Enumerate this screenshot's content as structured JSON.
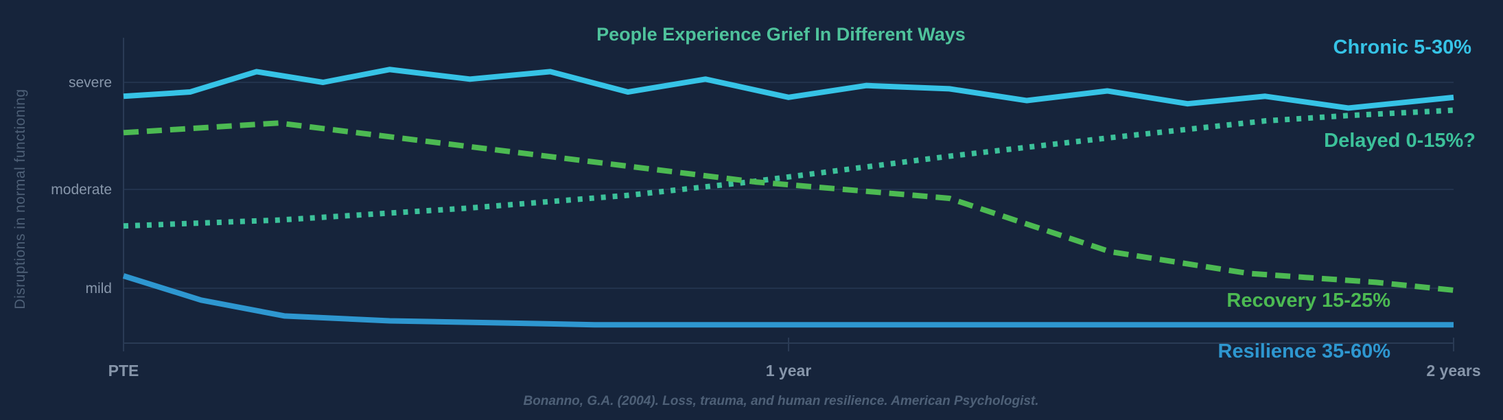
{
  "chart_data": {
    "type": "line",
    "title": "People Experience Grief In Different Ways",
    "ylabel": "Disruptions in normal functioning",
    "xlabel": "",
    "x_ticks": [
      {
        "value": 0,
        "label": "PTE"
      },
      {
        "value": 12,
        "label": "1 year"
      },
      {
        "value": 24,
        "label": "2 years"
      }
    ],
    "y_ticks": [
      {
        "value": 1,
        "label": "mild"
      },
      {
        "value": 2,
        "label": "moderate"
      },
      {
        "value": 3,
        "label": "severe"
      }
    ],
    "xlim": [
      0,
      24
    ],
    "grid": "horizontal",
    "footnote": "Bonanno, G.A. (2004). Loss, trauma, and human resilience. American Psychologist.",
    "series": [
      {
        "name": "Chronic 5-30%",
        "style": "solid",
        "color": "#36c3e6",
        "x": [
          0,
          1.2,
          2.4,
          3.6,
          4.8,
          6.25,
          7.7,
          9.1,
          10.5,
          12,
          13.4,
          14.9,
          16.3,
          17.75,
          19.2,
          20.6,
          22.1,
          24
        ],
        "y": [
          2.87,
          2.91,
          3.1,
          3.0,
          3.12,
          3.03,
          3.1,
          2.91,
          3.03,
          2.86,
          2.97,
          2.94,
          2.83,
          2.92,
          2.8,
          2.87,
          2.76,
          2.86
        ]
      },
      {
        "name": "Delayed 0-15%?",
        "style": "dotted",
        "color": "#3cc19a",
        "x": [
          0,
          2.8,
          6.2,
          9.1,
          11.3,
          14.9,
          17.75,
          20.6,
          22.1,
          24
        ],
        "y": [
          1.63,
          1.69,
          1.81,
          1.94,
          2.07,
          2.31,
          2.48,
          2.64,
          2.69,
          2.74
        ]
      },
      {
        "name": "Recovery 15-25%",
        "style": "dashed",
        "color": "#4cba52",
        "x": [
          0,
          2.8,
          11.4,
          14.9,
          17.8,
          20.3,
          22.6,
          24
        ],
        "y": [
          2.53,
          2.62,
          2.07,
          1.91,
          1.37,
          1.15,
          1.06,
          0.98
        ]
      },
      {
        "name": "Resilience 35-60%",
        "style": "solid",
        "color": "#2e97d0",
        "x": [
          0,
          1.4,
          2.9,
          4.8,
          7.7,
          8.5,
          24
        ],
        "y": [
          1.125,
          0.88,
          0.72,
          0.67,
          0.64,
          0.63,
          0.63
        ]
      }
    ]
  },
  "colors": {
    "background": "#16243b",
    "title": "#4fc39c",
    "grid": "#22334d"
  }
}
